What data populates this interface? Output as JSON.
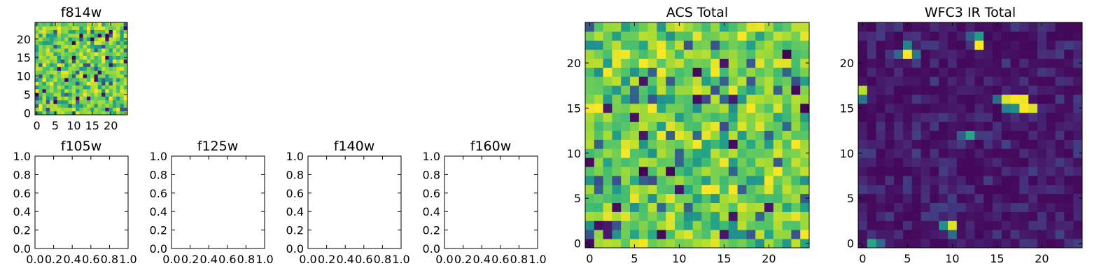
{
  "chart_data": [
    {
      "type": "heatmap",
      "title": "f814w",
      "shape": [
        25,
        25
      ],
      "colormap": "viridis",
      "value_range": [
        0,
        1
      ],
      "seed": 814,
      "distribution": "noisy-mid-high",
      "xlim": [
        -0.5,
        24.5
      ],
      "ylim": [
        -0.5,
        24.5
      ],
      "xticks": [
        "0",
        "5",
        "10",
        "15",
        "20"
      ],
      "yticks": [
        "0",
        "5",
        "10",
        "15",
        "20"
      ]
    },
    {
      "type": "empty",
      "title": "f105w",
      "xlim": [
        0,
        1
      ],
      "ylim": [
        0,
        1
      ],
      "xticks": [
        "0.0",
        "0.2",
        "0.4",
        "0.6",
        "0.8",
        "1.0"
      ],
      "yticks": [
        "0.0",
        "0.2",
        "0.4",
        "0.6",
        "0.8",
        "1.0"
      ]
    },
    {
      "type": "empty",
      "title": "f125w",
      "xlim": [
        0,
        1
      ],
      "ylim": [
        0,
        1
      ],
      "xticks": [
        "0.0",
        "0.2",
        "0.4",
        "0.6",
        "0.8",
        "1.0"
      ],
      "yticks": [
        "0.0",
        "0.2",
        "0.4",
        "0.6",
        "0.8",
        "1.0"
      ]
    },
    {
      "type": "empty",
      "title": "f140w",
      "xlim": [
        0,
        1
      ],
      "ylim": [
        0,
        1
      ],
      "xticks": [
        "0.0",
        "0.2",
        "0.4",
        "0.6",
        "0.8",
        "1.0"
      ],
      "yticks": [
        "0.0",
        "0.2",
        "0.4",
        "0.6",
        "0.8",
        "1.0"
      ]
    },
    {
      "type": "empty",
      "title": "f160w",
      "xlim": [
        0,
        1
      ],
      "ylim": [
        0,
        1
      ],
      "xticks": [
        "0.0",
        "0.2",
        "0.4",
        "0.6",
        "0.8",
        "1.0"
      ],
      "yticks": [
        "0.0",
        "0.2",
        "0.4",
        "0.6",
        "0.8",
        "1.0"
      ]
    },
    {
      "type": "heatmap",
      "title": "ACS Total",
      "shape": [
        25,
        25
      ],
      "colormap": "viridis",
      "value_range": [
        0,
        1
      ],
      "seed": 2017,
      "distribution": "noisy-mid-high",
      "xlim": [
        -0.5,
        24.5
      ],
      "ylim": [
        -0.5,
        24.5
      ],
      "xticks": [
        "0",
        "5",
        "10",
        "15",
        "20"
      ],
      "yticks": [
        "0",
        "5",
        "10",
        "15",
        "20"
      ]
    },
    {
      "type": "heatmap",
      "title": "WFC3 IR Total",
      "shape": [
        25,
        25
      ],
      "colormap": "viridis",
      "value_range": [
        0,
        1
      ],
      "seed": 3160,
      "distribution": "low-background-with-sources",
      "hotspots": [
        {
          "x": 16,
          "y": 16,
          "v": 0.95
        },
        {
          "x": 17,
          "y": 16,
          "v": 1.0
        },
        {
          "x": 18,
          "y": 16,
          "v": 0.98
        },
        {
          "x": 18,
          "y": 15,
          "v": 1.0
        },
        {
          "x": 19,
          "y": 15,
          "v": 0.95
        },
        {
          "x": 17,
          "y": 15,
          "v": 0.5
        },
        {
          "x": 16,
          "y": 15,
          "v": 0.45
        },
        {
          "x": 15,
          "y": 16,
          "v": 0.35
        },
        {
          "x": 5,
          "y": 21,
          "v": 1.0
        },
        {
          "x": 5,
          "y": 22,
          "v": 0.45
        },
        {
          "x": 6,
          "y": 21,
          "v": 0.4
        },
        {
          "x": 4,
          "y": 21,
          "v": 0.35
        },
        {
          "x": 13,
          "y": 22,
          "v": 1.0
        },
        {
          "x": 13,
          "y": 23,
          "v": 0.55
        },
        {
          "x": 12,
          "y": 23,
          "v": 0.3
        },
        {
          "x": 12,
          "y": 12,
          "v": 0.6
        },
        {
          "x": 11,
          "y": 12,
          "v": 0.3
        },
        {
          "x": 10,
          "y": 2,
          "v": 0.95
        },
        {
          "x": 9,
          "y": 2,
          "v": 0.5
        },
        {
          "x": 10,
          "y": 1,
          "v": 0.35
        },
        {
          "x": 1,
          "y": 0,
          "v": 0.6
        },
        {
          "x": 2,
          "y": 0,
          "v": 0.35
        },
        {
          "x": 0,
          "y": 17,
          "v": 0.9
        },
        {
          "x": 0,
          "y": 16,
          "v": 0.4
        }
      ],
      "xlim": [
        -0.5,
        24.5
      ],
      "ylim": [
        -0.5,
        24.5
      ],
      "xticks": [
        "0",
        "5",
        "10",
        "15",
        "20"
      ],
      "yticks": [
        "0",
        "5",
        "10",
        "15",
        "20"
      ]
    }
  ]
}
